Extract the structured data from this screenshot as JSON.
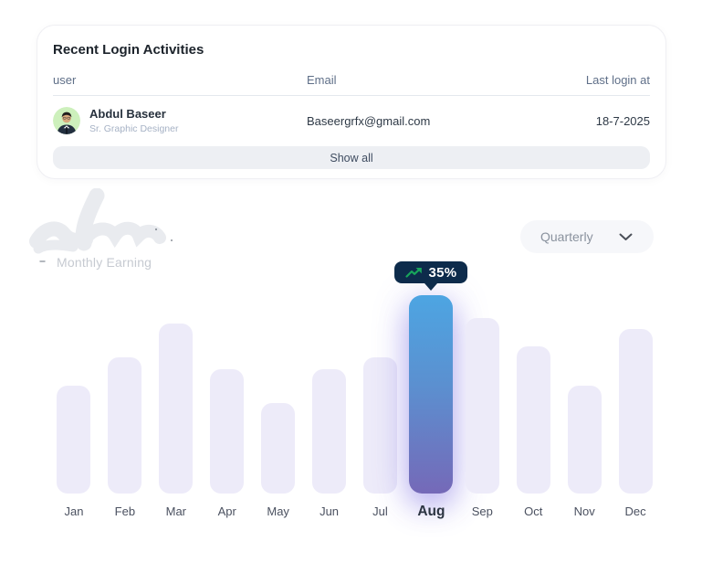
{
  "login_card": {
    "title": "Recent Login Activities",
    "columns": [
      "user",
      "Email",
      "Last login at"
    ],
    "row": {
      "name": "Abdul Baseer",
      "role": "Sr. Graphic Designer",
      "email": "Baseergrfx@gmail.com",
      "last_login": "18-7-2025",
      "avatar": "man-portrait-green-circle"
    },
    "show_all_label": "Show all"
  },
  "earnings": {
    "section_label": "Monthly Earning",
    "period_filter": {
      "selected": "Quarterly",
      "icon": "chevron-down-icon"
    }
  },
  "chart_data": {
    "type": "bar",
    "title": "Monthly Earning",
    "categories": [
      "Jan",
      "Feb",
      "Mar",
      "Apr",
      "May",
      "Jun",
      "Jul",
      "Aug",
      "Sep",
      "Oct",
      "Nov",
      "Dec"
    ],
    "values": [
      19,
      24,
      30,
      22,
      16,
      22,
      24,
      35,
      31,
      26,
      19,
      29
    ],
    "unit": "%",
    "ylim": [
      0,
      35
    ],
    "grid": false,
    "legend": false,
    "xlabel": "",
    "ylabel": "",
    "highlighted": {
      "category": "Aug",
      "label": "35%",
      "icon": "trend-up-icon"
    },
    "colors": {
      "bar": "#edebf9",
      "highlight_gradient_top": "#4da5e2",
      "highlight_gradient_bottom": "#7569b8",
      "tooltip_bg": "#0d2b4b",
      "trend_green": "#18a45b"
    }
  }
}
